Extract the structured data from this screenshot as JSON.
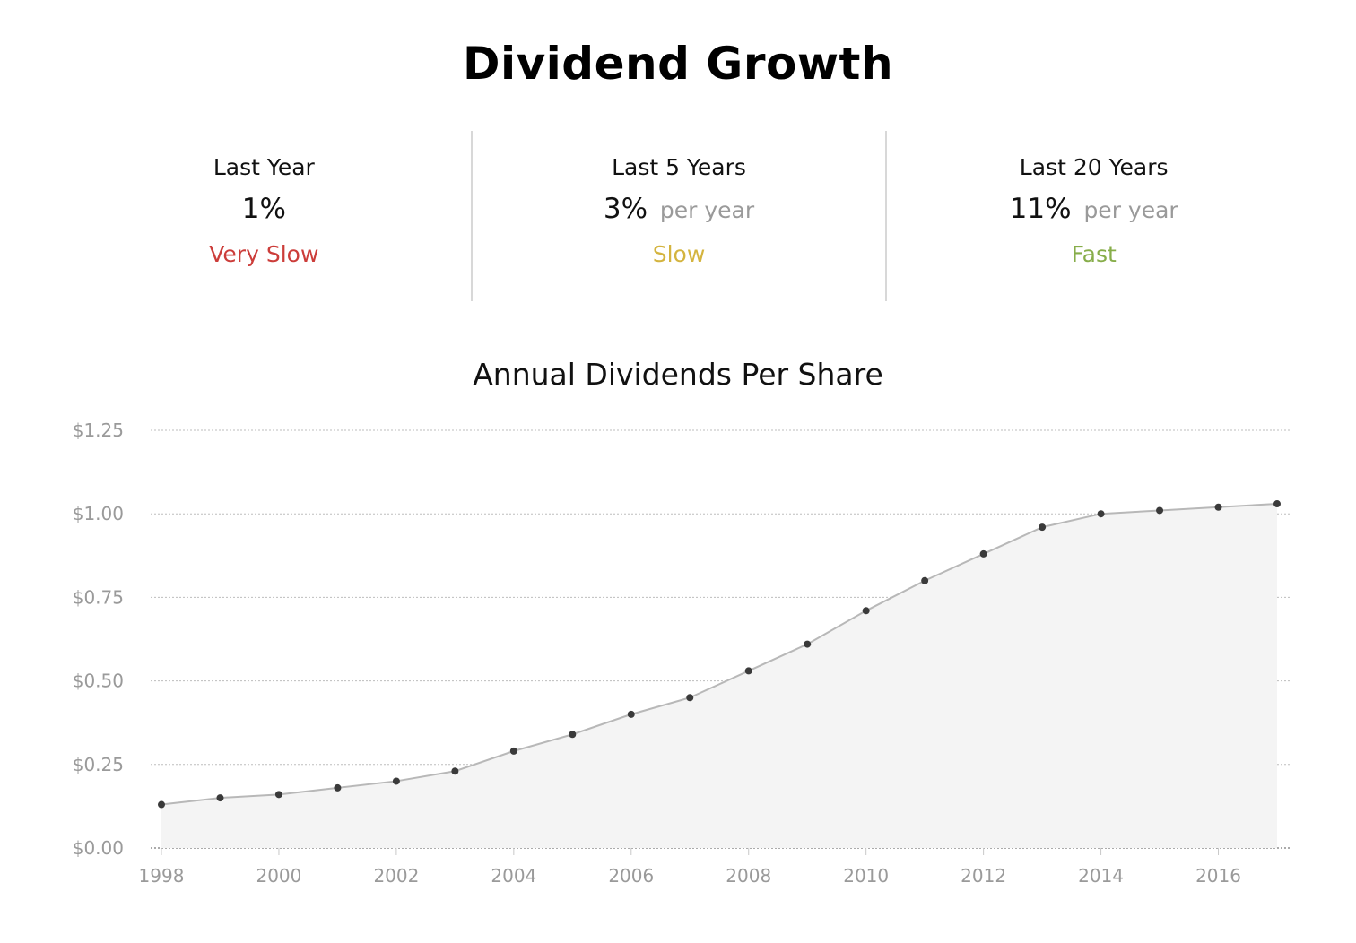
{
  "header": {
    "title": "Dividend Growth"
  },
  "stats": [
    {
      "label": "Last Year",
      "value": "1%",
      "suffix": "",
      "rating": "Very Slow"
    },
    {
      "label": "Last 5 Years",
      "value": "3%",
      "suffix": "per year",
      "rating": "Slow"
    },
    {
      "label": "Last 20 Years",
      "value": "11%",
      "suffix": "per year",
      "rating": "Fast"
    }
  ],
  "colors": {
    "very_slow": "#cc3d3a",
    "slow": "#d4b43f",
    "fast": "#87ad4a",
    "line": "#b8b8b8",
    "area": "#f4f4f4",
    "point": "#3a3a3a",
    "grid": "#bdbdbd"
  },
  "chart_data": {
    "type": "area",
    "title": "Annual Dividends Per Share",
    "xlabel": "",
    "ylabel": "",
    "x": [
      1998,
      1999,
      2000,
      2001,
      2002,
      2003,
      2004,
      2005,
      2006,
      2007,
      2008,
      2009,
      2010,
      2011,
      2012,
      2013,
      2014,
      2015,
      2016,
      2017
    ],
    "series": [
      {
        "values": [
          0.13,
          0.15,
          0.16,
          0.18,
          0.2,
          0.23,
          0.29,
          0.34,
          0.4,
          0.45,
          0.53,
          0.61,
          0.71,
          0.8,
          0.88,
          0.96,
          1.0,
          1.01,
          1.02,
          1.03
        ]
      }
    ],
    "ylim": [
      0,
      1.25
    ],
    "y_ticks": [
      0,
      0.25,
      0.5,
      0.75,
      1.0,
      1.25
    ],
    "y_tick_labels": [
      "$0.00",
      "$0.25",
      "$0.50",
      "$0.75",
      "$1.00",
      "$1.25"
    ],
    "x_ticks": [
      1998,
      2000,
      2002,
      2004,
      2006,
      2008,
      2010,
      2012,
      2014,
      2016
    ],
    "x_tick_labels": [
      "1998",
      "2000",
      "2002",
      "2004",
      "2006",
      "2008",
      "2010",
      "2012",
      "2014",
      "2016"
    ],
    "grid": true,
    "legend": "none"
  }
}
